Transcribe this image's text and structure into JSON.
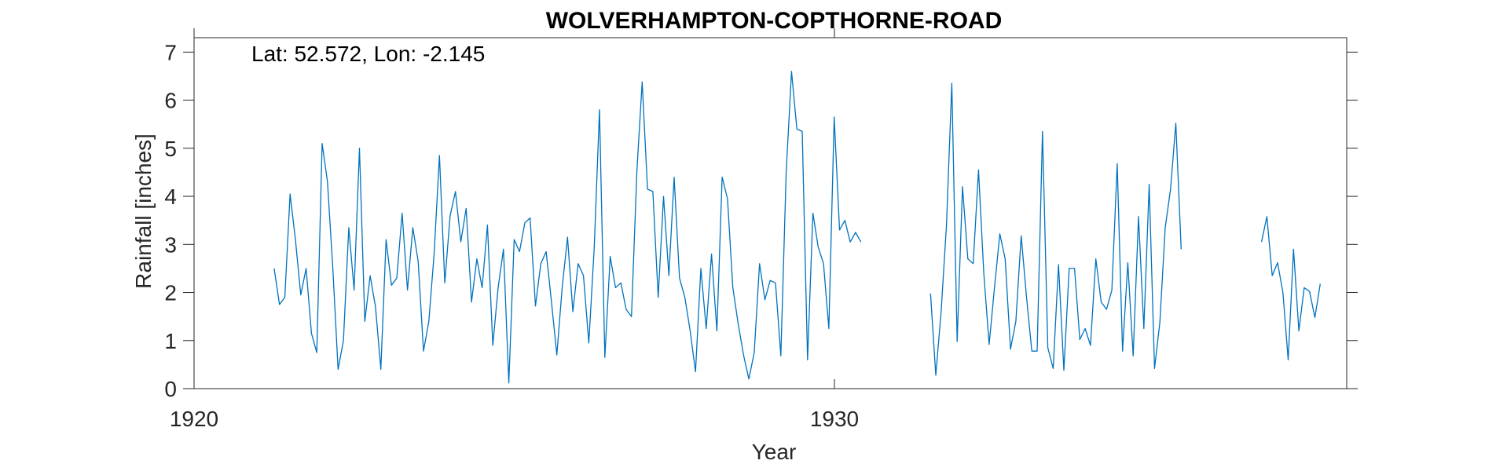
{
  "chart_data": {
    "type": "line",
    "title": "WOLVERHAMPTON-COPTHORNE-ROAD",
    "annotation": "Lat: 52.572, Lon: -2.145",
    "xlabel": "Year",
    "ylabel": "Rainfall [inches]",
    "xlim": [
      1920,
      1938
    ],
    "ylim": [
      0,
      7.3
    ],
    "xticks": [
      1920,
      1930
    ],
    "yticks": [
      0,
      1,
      2,
      3,
      4,
      5,
      6,
      7
    ],
    "grid": false,
    "color": "#0072BD",
    "series": [
      {
        "values_segments": [
          {
            "start_year": 1921.25,
            "step": 0.0833,
            "y": [
              2.5,
              1.75,
              1.9,
              4.05,
              3.1,
              1.95,
              2.5,
              1.15,
              0.75,
              5.1,
              4.3,
              2.5,
              0.4,
              1.0,
              3.35,
              2.05,
              5.0,
              1.4,
              2.35,
              1.7,
              0.4,
              3.1,
              2.15,
              2.3,
              3.65,
              2.05,
              3.35,
              2.65,
              0.78,
              1.4,
              2.8,
              4.85,
              2.2,
              3.6,
              4.1,
              3.05,
              3.75,
              1.8,
              2.7,
              2.1,
              3.4,
              0.9,
              2.1,
              2.9,
              0.12,
              3.1,
              2.85,
              3.45,
              3.55,
              1.72,
              2.6,
              2.85,
              1.8,
              0.7,
              2.1,
              3.15,
              1.6,
              2.6,
              2.35,
              0.95,
              2.9,
              5.8,
              0.65,
              2.75,
              2.1,
              2.2,
              1.65,
              1.5,
              4.5,
              6.38,
              4.15,
              4.1,
              1.9,
              4.0,
              2.35,
              4.4,
              2.3,
              1.9,
              1.2,
              0.35,
              2.5,
              1.25,
              2.8,
              1.2,
              4.4,
              3.95,
              2.1,
              1.35,
              0.7,
              0.2,
              0.75,
              2.6,
              1.85,
              2.25,
              2.2,
              0.68,
              4.5,
              6.6,
              5.4,
              5.35,
              0.6,
              3.65,
              2.95,
              2.6,
              1.25,
              5.65,
              3.3,
              3.5,
              3.05,
              3.25,
              3.05
            ]
          },
          {
            "start_year": 1931.5,
            "step": 0.0833,
            "y": [
              1.98,
              0.28,
              1.6,
              3.4,
              6.35,
              0.98,
              4.2,
              2.7,
              2.6,
              4.55,
              2.4,
              0.92,
              2.1,
              3.22,
              2.7,
              0.82,
              1.4,
              3.18,
              1.9,
              0.78,
              0.78,
              5.35,
              0.85,
              0.42,
              2.58,
              0.38,
              2.5,
              2.5,
              1.02,
              1.25,
              0.9,
              2.7,
              1.8,
              1.65,
              2.05,
              4.68,
              0.78,
              2.62,
              0.68,
              3.58,
              1.25,
              4.25,
              0.42,
              1.38,
              3.35,
              4.15,
              5.52,
              2.9
            ]
          },
          {
            "start_year": 1936.67,
            "step": 0.0833,
            "y": [
              3.05,
              3.58,
              2.35,
              2.62,
              2.0,
              0.6,
              2.9,
              1.2,
              2.1,
              2.02,
              1.48,
              2.18
            ]
          }
        ]
      }
    ]
  }
}
